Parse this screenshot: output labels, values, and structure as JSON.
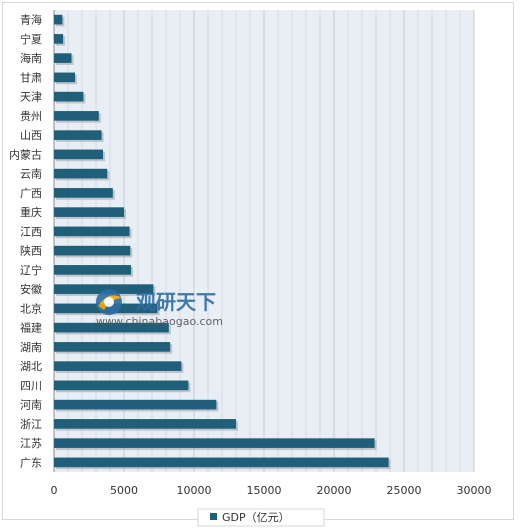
{
  "chart_data": {
    "type": "bar",
    "orientation": "horizontal",
    "categories": [
      "青海",
      "宁夏",
      "海南",
      "甘肃",
      "天津",
      "贵州",
      "山西",
      "内蒙古",
      "云南",
      "广西",
      "重庆",
      "江西",
      "陕西",
      "辽宁",
      "安徽",
      "北京",
      "福建",
      "湖南",
      "湖北",
      "四川",
      "河南",
      "浙江",
      "江苏",
      "广东"
    ],
    "series": [
      {
        "name": "GDP（亿元）",
        "color": "#1f5f7a",
        "values": [
          600,
          650,
          1250,
          1500,
          2100,
          3200,
          3400,
          3500,
          3800,
          4200,
          5000,
          5400,
          5450,
          5500,
          7100,
          7400,
          8200,
          8300,
          9100,
          9600,
          11600,
          13000,
          22900,
          23900
        ]
      }
    ],
    "xlim": [
      0,
      30000
    ],
    "x_ticks": [
      "0",
      "5000",
      "10000",
      "15000",
      "20000",
      "25000",
      "30000"
    ],
    "grid": "vertical",
    "legend_position": "bottom"
  },
  "watermark": {
    "brand": "观研天下",
    "url": "www.chinabaogao.com"
  },
  "colors": {
    "bar": "#1f5f7a",
    "plot_bg": "#e8eef4",
    "grid": "#c3ccd6"
  }
}
